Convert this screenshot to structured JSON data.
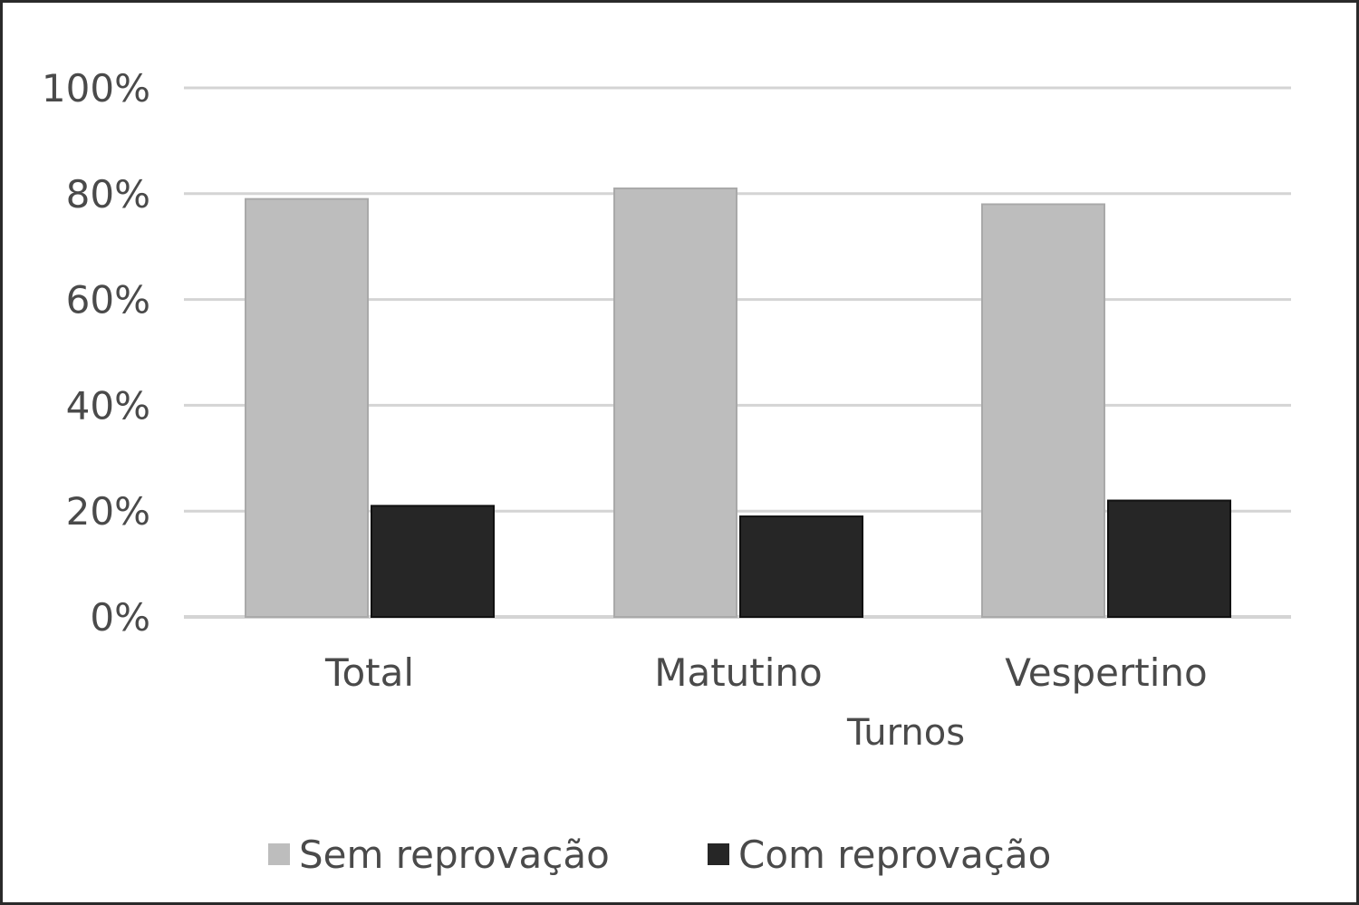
{
  "chart_data": {
    "type": "bar",
    "categories": [
      "Total",
      "Matutino",
      "Vespertino"
    ],
    "series": [
      {
        "name": "Sem reprovação",
        "values": [
          79,
          81,
          78
        ],
        "color": "#bdbdbd"
      },
      {
        "name": "Com reprovação",
        "values": [
          21,
          19,
          22
        ],
        "color": "#262626"
      }
    ],
    "xlabel": "Turnos",
    "ylabel": "",
    "ylim": [
      0,
      100
    ],
    "yticks": [
      "0%",
      "20%",
      "40%",
      "60%",
      "80%",
      "100%"
    ],
    "grid": true,
    "legend_position": "bottom"
  }
}
